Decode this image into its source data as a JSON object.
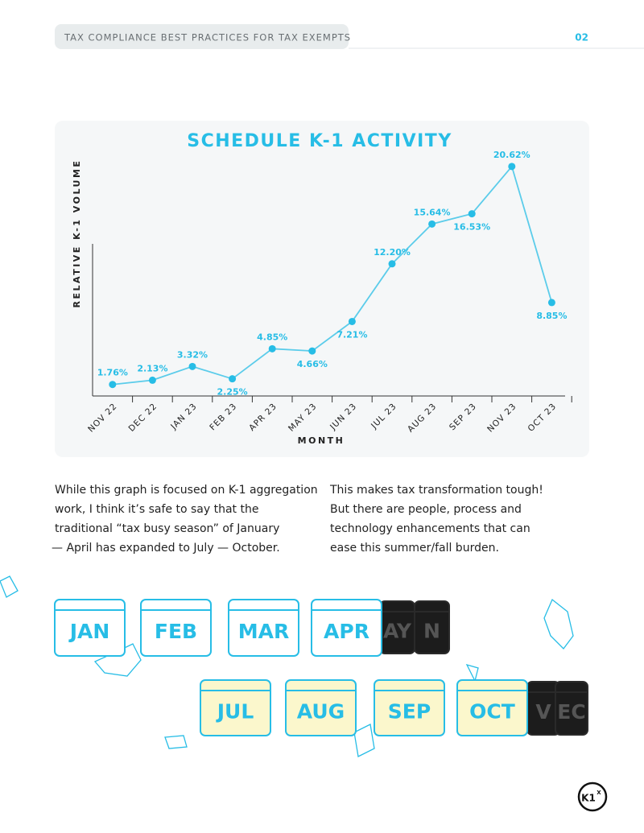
{
  "header": {
    "title": "TAX COMPLIANCE BEST PRACTICES FOR TAX EXEMPTS",
    "page": "02"
  },
  "chart_data": {
    "type": "line",
    "title": "SCHEDULE K-1 ACTIVITY",
    "y_label": "RELATIVE K-1 VOLUME",
    "x_label": "MONTH",
    "categories": [
      "NOV 22",
      "DEC 22",
      "JAN 23",
      "FEB 23",
      "APR 23",
      "MAY 23",
      "JUN 23",
      "JUL 23",
      "AUG 23",
      "SEP 23",
      "NOV 23",
      "OCT 23"
    ],
    "values": [
      1.76,
      2.13,
      3.32,
      2.25,
      4.85,
      4.66,
      7.21,
      12.2,
      15.64,
      16.53,
      20.62,
      8.85
    ],
    "value_labels": [
      "1.76%",
      "2.13%",
      "3.32%",
      "2.25%",
      "4.85%",
      "4.66%",
      "7.21%",
      "12.20%",
      "15.64%",
      "16.53%",
      "20.62%",
      "8.85%"
    ],
    "color": "#27bde6",
    "ylim": [
      0,
      22
    ]
  },
  "body": {
    "left": [
      "While this graph is focused on K-1 aggregation",
      "work, I think it’s safe to say that the",
      "traditional “tax busy season” of January",
      "— April has expanded to July — October."
    ],
    "right": [
      "This makes tax transformation tough!",
      "But there are people, process and",
      "technology enhancements that can",
      "ease this summer/fall burden."
    ]
  },
  "calendar": {
    "row1": [
      "JAN",
      "FEB",
      "MAR",
      "APR"
    ],
    "row1_hidden": [
      "AY",
      "N"
    ],
    "row2": [
      "JUL",
      "AUG",
      "SEP",
      "OCT"
    ],
    "row2_hidden": [
      "V",
      "EC"
    ]
  },
  "logo": {
    "main": "K1",
    "sup": "X"
  }
}
